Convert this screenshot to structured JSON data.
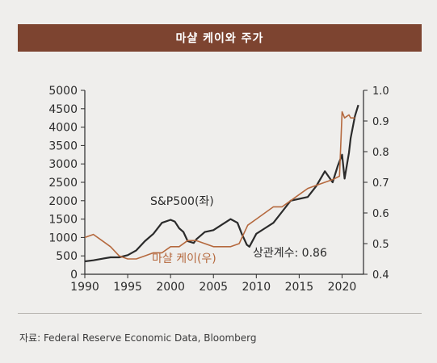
{
  "header": {
    "title": "마샬 케이와 주가"
  },
  "source": "자료: Federal Reserve Economic Data, Bloomberg",
  "colors": {
    "banner": "#7d4430",
    "sp500": "#2b2b2b",
    "marshall_k": "#b5693e",
    "axis": "#2b2b2b"
  },
  "chart_data": {
    "type": "line",
    "title": "마샬 케이와 주가",
    "x_ticks": [
      "1990",
      "1995",
      "2000",
      "2005",
      "2010",
      "2015",
      "2020"
    ],
    "xlim": [
      1990,
      2022.5
    ],
    "left_axis": {
      "ticks": [
        "0",
        "500",
        "1000",
        "1500",
        "2000",
        "2500",
        "3000",
        "3500",
        "4000",
        "4500",
        "5000"
      ],
      "ylim": [
        0,
        5000
      ]
    },
    "right_axis": {
      "ticks": [
        "0.4",
        "0.5",
        "0.6",
        "0.7",
        "0.8",
        "0.9",
        "1.0"
      ],
      "ylim": [
        0.4,
        1.0
      ]
    },
    "grid": false,
    "series": [
      {
        "name": "S&P500(좌)",
        "axis": "left",
        "x": [
          1990,
          1991,
          1992,
          1993,
          1994,
          1995,
          1996,
          1997,
          1998,
          1999,
          2000,
          2000.5,
          2001,
          2001.5,
          2002,
          2002.7,
          2003,
          2004,
          2005,
          2006,
          2007,
          2007.8,
          2008.3,
          2008.9,
          2009.2,
          2010,
          2011,
          2012,
          2013,
          2014,
          2015,
          2016,
          2017,
          2018,
          2018.9,
          2019.5,
          2020,
          2020.3,
          2020.8,
          2021,
          2021.5,
          2021.9
        ],
        "y": [
          350,
          380,
          420,
          460,
          460,
          520,
          650,
          900,
          1100,
          1400,
          1480,
          1430,
          1250,
          1150,
          900,
          850,
          950,
          1150,
          1200,
          1350,
          1500,
          1400,
          1100,
          800,
          750,
          1100,
          1250,
          1400,
          1700,
          2000,
          2050,
          2100,
          2400,
          2800,
          2500,
          2950,
          3250,
          2600,
          3300,
          3700,
          4300,
          4600
        ]
      },
      {
        "name": "마샬 케이(우)",
        "axis": "right",
        "x": [
          1990,
          1991,
          1992,
          1993,
          1994,
          1995,
          1996,
          1997,
          1998,
          1999,
          2000,
          2001,
          2002,
          2003,
          2004,
          2005,
          2006,
          2007,
          2008,
          2008.5,
          2009,
          2010,
          2011,
          2012,
          2013,
          2014,
          2015,
          2016,
          2017,
          2018,
          2019,
          2019.7,
          2020,
          2020.3,
          2020.8,
          2021,
          2021.5
        ],
        "y": [
          0.52,
          0.53,
          0.51,
          0.49,
          0.46,
          0.45,
          0.45,
          0.46,
          0.47,
          0.47,
          0.49,
          0.49,
          0.51,
          0.51,
          0.5,
          0.49,
          0.49,
          0.49,
          0.5,
          0.53,
          0.56,
          0.58,
          0.6,
          0.62,
          0.62,
          0.64,
          0.66,
          0.68,
          0.69,
          0.7,
          0.71,
          0.72,
          0.93,
          0.91,
          0.92,
          0.91,
          0.91
        ]
      }
    ],
    "annotations": [
      {
        "text": "S&P500(좌)",
        "color": "#2b2b2b"
      },
      {
        "text": "마샬 케이(우)",
        "color": "#b5693e"
      },
      {
        "text": "상관계수: 0.86",
        "color": "#2b2b2b"
      }
    ]
  }
}
